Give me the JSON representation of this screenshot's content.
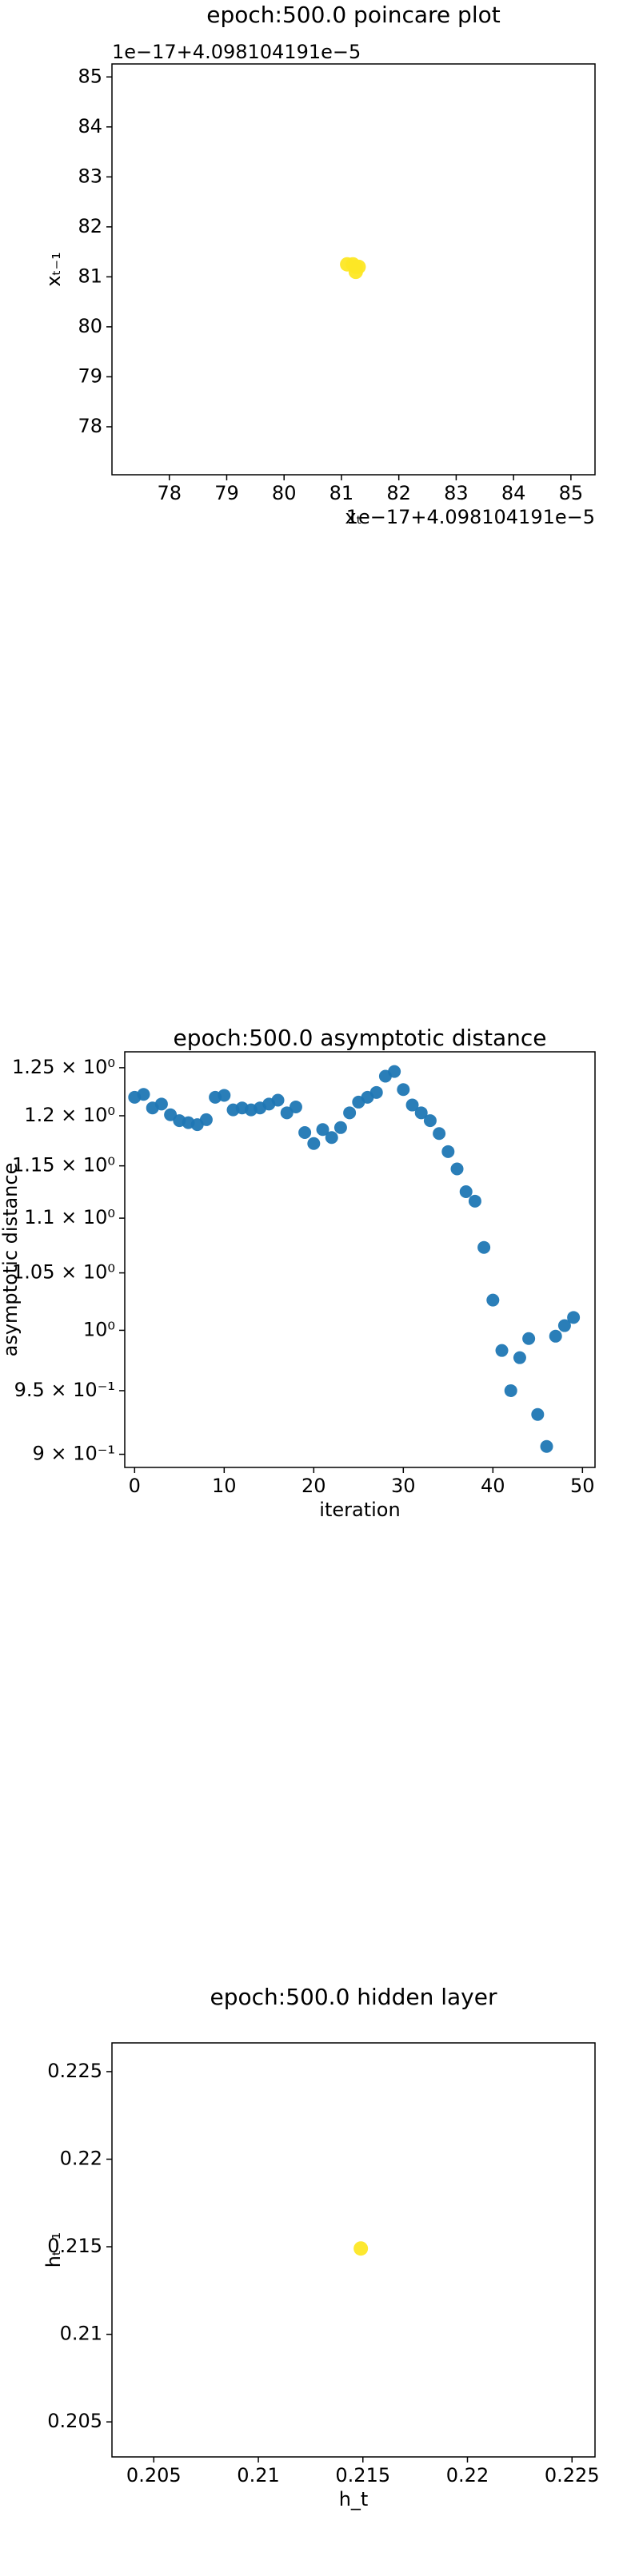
{
  "chart_data": [
    {
      "type": "scatter",
      "title": "epoch:500.0 poincare plot",
      "x_label": "xₜ",
      "y_label": "xₜ₋₁",
      "x_offset_text": "1e−17+4.098104191e−5",
      "y_offset_text": "1e−17+4.098104191e−5",
      "x": [
        81.1,
        81.2,
        81.25,
        81.3,
        81.25
      ],
      "y": [
        81.25,
        81.25,
        81.2,
        81.2,
        81.1
      ],
      "color": "#fde725",
      "xlim": [
        77.0,
        85.42
      ],
      "ylim": [
        77.04,
        85.26
      ],
      "xticks": [
        78,
        79,
        80,
        81,
        82,
        83,
        84,
        85
      ],
      "yticks": [
        78,
        79,
        80,
        81,
        82,
        83,
        84,
        85
      ]
    },
    {
      "type": "scatter",
      "title": "epoch:500.0 asymptotic distance",
      "x_label": "iteration",
      "y_label": "asymptotic distance",
      "log_y": true,
      "x": [
        0,
        1,
        2,
        3,
        4,
        5,
        6,
        7,
        8,
        9,
        10,
        11,
        12,
        13,
        14,
        15,
        16,
        17,
        18,
        19,
        20,
        21,
        22,
        23,
        24,
        25,
        26,
        27,
        28,
        29,
        30,
        31,
        32,
        33,
        34,
        35,
        36,
        37,
        38,
        39,
        40,
        41,
        42,
        43,
        44,
        45,
        46,
        47,
        48,
        49
      ],
      "y": [
        1.219,
        1.222,
        1.208,
        1.212,
        1.201,
        1.195,
        1.193,
        1.191,
        1.196,
        1.219,
        1.221,
        1.206,
        1.208,
        1.206,
        1.208,
        1.212,
        1.216,
        1.203,
        1.209,
        1.183,
        1.172,
        1.186,
        1.178,
        1.188,
        1.203,
        1.214,
        1.219,
        1.224,
        1.241,
        1.246,
        1.227,
        1.211,
        1.203,
        1.195,
        1.182,
        1.164,
        1.147,
        1.125,
        1.116,
        1.073,
        1.026,
        0.983,
        0.95,
        0.977,
        0.993,
        0.931,
        0.906,
        0.995,
        1.004,
        1.011
      ],
      "color": "#1f77b4",
      "xlim": [
        -1.1,
        51.4
      ],
      "ylim": [
        0.89,
        1.267
      ],
      "xticks": [
        0,
        10,
        20,
        30,
        40,
        50
      ],
      "yticks": [
        {
          "value": 1.25,
          "label": "1.25 × 10⁰"
        },
        {
          "value": 1.2,
          "label": "1.2 × 10⁰"
        },
        {
          "value": 1.15,
          "label": "1.15 × 10⁰"
        },
        {
          "value": 1.1,
          "label": "1.1 × 10⁰"
        },
        {
          "value": 1.05,
          "label": "1.05 × 10⁰"
        },
        {
          "value": 1,
          "label": "10⁰"
        },
        {
          "value": 0.95,
          "label": "9.5 × 10⁻¹"
        },
        {
          "value": 0.9,
          "label": "9 × 10⁻¹"
        }
      ]
    },
    {
      "type": "scatter",
      "title": "epoch:500.0 hidden layer",
      "x_label": "h_t",
      "y_label": "hₜ₋₁",
      "x": [
        0.2149
      ],
      "y": [
        0.2149
      ],
      "color": "#fde725",
      "xlim": [
        0.203,
        0.2261
      ],
      "ylim": [
        0.203,
        0.22664
      ],
      "xticks": [
        0.205,
        0.21,
        0.215,
        0.22,
        0.225
      ],
      "yticks": [
        0.205,
        0.21,
        0.215,
        0.22,
        0.225
      ]
    }
  ]
}
